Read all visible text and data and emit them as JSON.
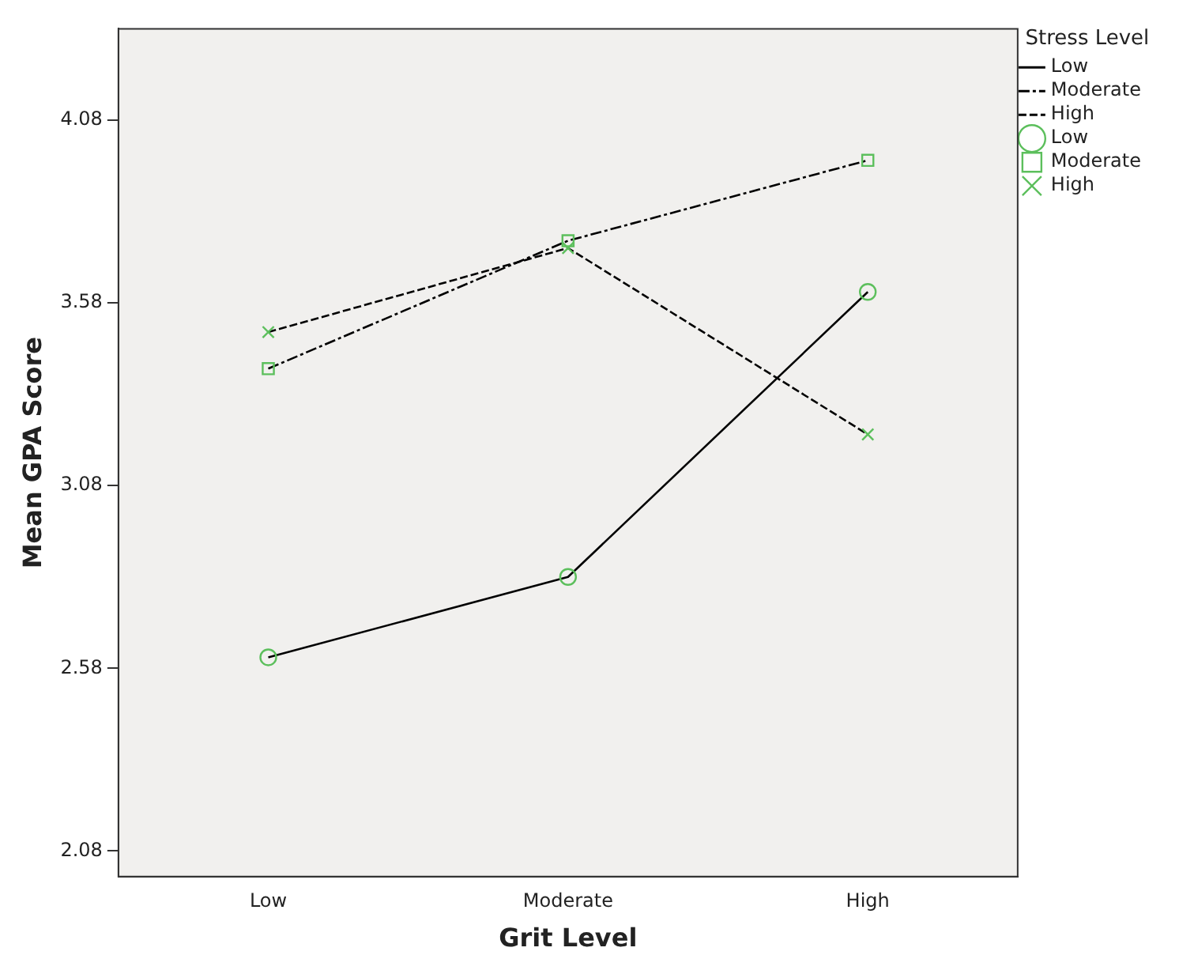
{
  "chart_data": {
    "type": "line",
    "xlabel": "Grit Level",
    "ylabel": "Mean GPA Score",
    "legend_title": "Stress Level",
    "legend": "right",
    "grid": false,
    "categories": [
      "Low",
      "Moderate",
      "High"
    ],
    "ylim": [
      2.01,
      4.33
    ],
    "yticks": [
      2.08,
      2.58,
      3.08,
      3.58,
      4.08
    ],
    "series": [
      {
        "name": "Low",
        "color": "#000000",
        "colors": [
          "#5cbf5c",
          "#5cbf5c",
          "#5cbf5c"
        ],
        "marker": "circle",
        "line_style": "solid",
        "values": [
          2.61,
          2.83,
          3.61
        ]
      },
      {
        "name": "Moderate",
        "color": "#000000",
        "colors": [
          "#5cbf5c",
          "#5cbf5c",
          "#5cbf5c"
        ],
        "marker": "square",
        "line_style": "dashdot",
        "values": [
          3.4,
          3.75,
          3.97
        ]
      },
      {
        "name": "High",
        "color": "#000000",
        "colors": [
          "#5cbf5c",
          "#5cbf5c",
          "#5cbf5c"
        ],
        "marker": "cross",
        "line_style": "dashed",
        "values": [
          3.5,
          3.73,
          3.22
        ]
      }
    ]
  }
}
